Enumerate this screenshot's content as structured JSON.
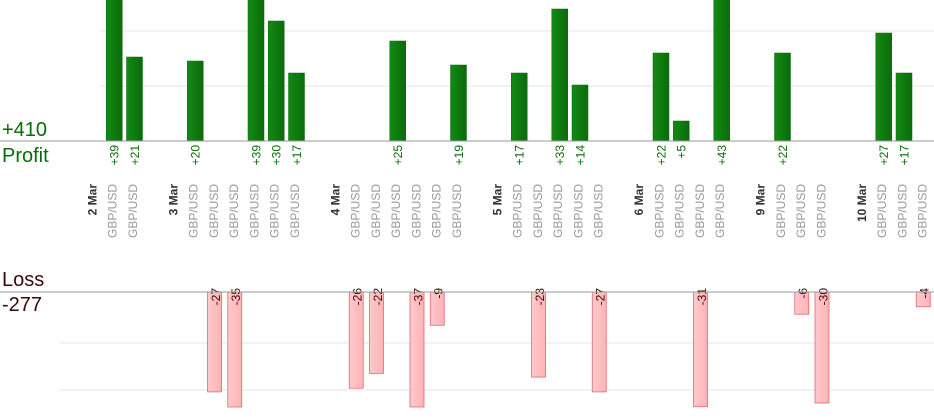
{
  "summary": {
    "profit_total": "+410",
    "profit_label": "Profit",
    "loss_label": "Loss",
    "loss_total": "-277"
  },
  "colors": {
    "profit_bar": "#0b6b0b",
    "profit_bar_light": "#138a13",
    "profit_text": "#0b6b0b",
    "loss_bar_fill": "#ffb3b6",
    "loss_bar_stroke": "#e06a70",
    "loss_text": "#3a0a0a",
    "gridline": "#e6e6e6",
    "axis": "#9a9a9a",
    "instrument_text": "#999999",
    "date_text": "#333333"
  },
  "chart_data": {
    "type": "bar",
    "layout_note": "",
    "columns": [
      {
        "kind": "date",
        "label": "2 Mar"
      },
      {
        "kind": "trade",
        "instrument": "GBP/USD",
        "profit": 39
      },
      {
        "kind": "trade",
        "instrument": "GBP/USD",
        "profit": 21
      },
      {
        "kind": "gap"
      },
      {
        "kind": "date",
        "label": "3 Mar"
      },
      {
        "kind": "trade",
        "instrument": "GBP/USD",
        "profit": 20
      },
      {
        "kind": "trade",
        "instrument": "GBP/USD",
        "loss": -27
      },
      {
        "kind": "trade",
        "instrument": "GBP/USD",
        "loss": -35
      },
      {
        "kind": "trade",
        "instrument": "GBP/USD",
        "profit": 39
      },
      {
        "kind": "trade",
        "instrument": "GBP/USD",
        "profit": 30
      },
      {
        "kind": "trade",
        "instrument": "GBP/USD",
        "profit": 17
      },
      {
        "kind": "gap"
      },
      {
        "kind": "date",
        "label": "4 Mar"
      },
      {
        "kind": "trade",
        "instrument": "GBP/USD",
        "loss": -26
      },
      {
        "kind": "trade",
        "instrument": "GBP/USD",
        "loss": -22
      },
      {
        "kind": "trade",
        "instrument": "GBP/USD",
        "profit": 25
      },
      {
        "kind": "trade",
        "instrument": "GBP/USD",
        "loss": -37
      },
      {
        "kind": "trade",
        "instrument": "GBP/USD",
        "loss": -9
      },
      {
        "kind": "trade",
        "instrument": "GBP/USD",
        "profit": 19
      },
      {
        "kind": "gap"
      },
      {
        "kind": "date",
        "label": "5 Mar"
      },
      {
        "kind": "trade",
        "instrument": "GBP/USD",
        "profit": 17
      },
      {
        "kind": "trade",
        "instrument": "GBP/USD",
        "loss": -23
      },
      {
        "kind": "trade",
        "instrument": "GBP/USD",
        "profit": 33
      },
      {
        "kind": "trade",
        "instrument": "GBP/USD",
        "profit": 14
      },
      {
        "kind": "trade",
        "instrument": "GBP/USD",
        "loss": -27
      },
      {
        "kind": "gap"
      },
      {
        "kind": "date",
        "label": "6 Mar"
      },
      {
        "kind": "trade",
        "instrument": "GBP/USD",
        "profit": 22
      },
      {
        "kind": "trade",
        "instrument": "GBP/USD",
        "profit": 5
      },
      {
        "kind": "trade",
        "instrument": "GBP/USD",
        "loss": -31
      },
      {
        "kind": "trade",
        "instrument": "GBP/USD",
        "profit": 43
      },
      {
        "kind": "gap"
      },
      {
        "kind": "date",
        "label": "9 Mar"
      },
      {
        "kind": "trade",
        "instrument": "GBP/USD",
        "profit": 22
      },
      {
        "kind": "trade",
        "instrument": "GBP/USD",
        "loss": -6
      },
      {
        "kind": "trade",
        "instrument": "GBP/USD",
        "loss": -30
      },
      {
        "kind": "gap"
      },
      {
        "kind": "date",
        "label": "10 Mar"
      },
      {
        "kind": "trade",
        "instrument": "GBP/USD",
        "profit": 27
      },
      {
        "kind": "trade",
        "instrument": "GBP/USD",
        "profit": 17
      },
      {
        "kind": "trade",
        "instrument": "GBP/USD",
        "loss": -4
      }
    ],
    "profit_ylim": [
      0,
      36
    ],
    "loss_ylim": [
      -32,
      0
    ],
    "grid": true
  }
}
